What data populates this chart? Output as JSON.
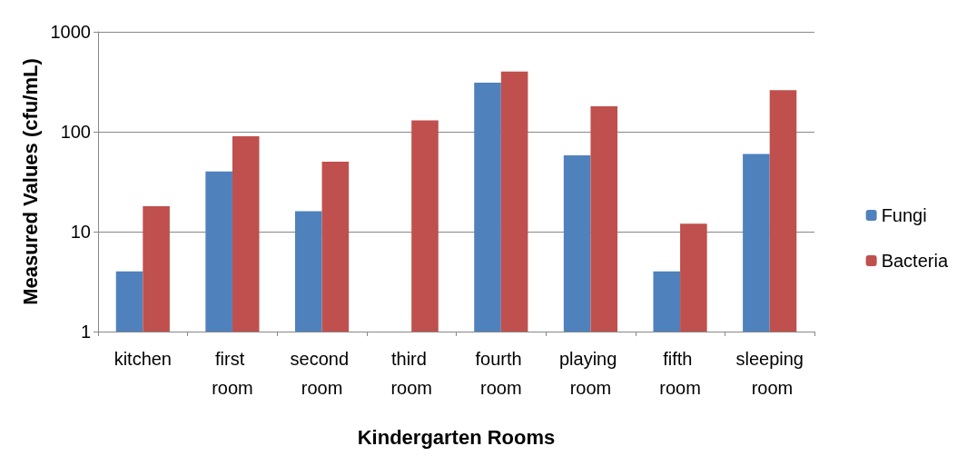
{
  "chart_data": {
    "type": "bar",
    "xlabel": "Kindergarten Rooms",
    "ylabel": "Measured Values (cfu/mL)",
    "categories": [
      "kitchen",
      "first room",
      "second room",
      "third room",
      "fourth room",
      "playing room",
      "fifth room",
      "sleeping room"
    ],
    "series": [
      {
        "name": "Fungi",
        "color": "#4f81bd",
        "values": [
          4,
          40,
          16,
          null,
          310,
          58,
          4,
          60
        ]
      },
      {
        "name": "Bacteria",
        "color": "#c0504d",
        "values": [
          18,
          90,
          50,
          130,
          400,
          180,
          12,
          260
        ]
      }
    ],
    "log": "y",
    "ylim": [
      1,
      1000
    ],
    "yticks": [
      1,
      10,
      100,
      1000
    ],
    "grid": "y",
    "legend": "right"
  }
}
